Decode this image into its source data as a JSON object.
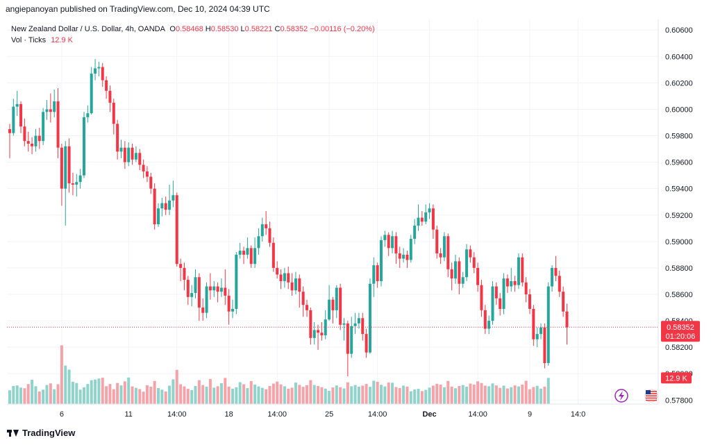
{
  "header": {
    "publish_caption": "angiepanoyan published on TradingView.com, Dec 10, 2024 04:39 UTC"
  },
  "legend": {
    "symbol": "New Zealand Dollar / U.S. Dollar, 4h, OANDA",
    "o_label": "O",
    "o_value": "0.58468",
    "h_label": "H",
    "h_value": "0.58530",
    "l_label": "L",
    "l_value": "0.58221",
    "c_label": "C",
    "c_value": "0.58352",
    "change": "−0.00116 (−0.20%)",
    "vol_label": "Vol · Ticks",
    "vol_value": "12.9 K"
  },
  "badges": {
    "price": "0.58352",
    "countdown": "01:20:06",
    "volume": "12.9 K"
  },
  "footer": {
    "brand": "TradingView"
  },
  "colors": {
    "up": "#26a69a",
    "down": "#f23645",
    "vol_up": "#8fd3cb",
    "vol_down": "#f5a3a8",
    "grid": "#f0f3fa",
    "axis_text": "#131722"
  },
  "icons": [
    "flash-icon",
    "us-flag-icon",
    "tradingview-logo-icon"
  ],
  "chart_data": {
    "type": "candlestick",
    "interval": "4h",
    "y_axis": {
      "side": "right",
      "ylim": [
        0.5777,
        0.6068
      ],
      "ticks": [
        "0.60600",
        "0.60400",
        "0.60200",
        "0.60000",
        "0.59800",
        "0.59600",
        "0.59400",
        "0.59200",
        "0.59000",
        "0.58800",
        "0.58600",
        "0.58400",
        "0.58200",
        "0.58000",
        "0.57800"
      ],
      "tick_values": [
        0.606,
        0.604,
        0.602,
        0.6,
        0.598,
        0.596,
        0.594,
        0.592,
        0.59,
        0.588,
        0.586,
        0.584,
        0.582,
        0.58,
        0.578
      ]
    },
    "x_axis": {
      "labels": [
        "6",
        "11",
        "14:00",
        "18",
        "14:00",
        "25",
        "14:00",
        "Dec",
        "14:00",
        "9",
        "14:0"
      ],
      "label_bar_index": [
        14,
        32,
        45,
        59,
        72,
        86,
        99,
        113,
        126,
        140,
        153
      ]
    },
    "last_price": 0.58352,
    "volume_ylim": [
      0,
      48000
    ],
    "candles": [
      [
        0.5985,
        0.5982,
        0.5989,
        0.5963,
        1
      ],
      [
        0.5982,
        0.6002,
        0.6008,
        0.598,
        1
      ],
      [
        0.6002,
        0.6004,
        0.6014,
        0.5995,
        1
      ],
      [
        0.6004,
        0.5987,
        0.6006,
        0.5982,
        0
      ],
      [
        0.5987,
        0.5976,
        0.5993,
        0.5972,
        0
      ],
      [
        0.5976,
        0.5974,
        0.5983,
        0.5968,
        0
      ],
      [
        0.5974,
        0.5972,
        0.5979,
        0.5966,
        0
      ],
      [
        0.5972,
        0.598,
        0.5985,
        0.5968,
        1
      ],
      [
        0.598,
        0.5976,
        0.5986,
        0.597,
        0
      ],
      [
        0.5976,
        0.5998,
        0.6001,
        0.5973,
        1
      ],
      [
        0.5998,
        0.6,
        0.6007,
        0.5992,
        1
      ],
      [
        0.6,
        0.5998,
        0.6012,
        0.599,
        0
      ],
      [
        0.5998,
        0.6006,
        0.6015,
        0.5994,
        1
      ],
      [
        0.6006,
        0.5971,
        0.6016,
        0.5963,
        0
      ],
      [
        0.5971,
        0.594,
        0.5974,
        0.5927,
        0
      ],
      [
        0.594,
        0.5972,
        0.5976,
        0.5912,
        1
      ],
      [
        0.5972,
        0.5944,
        0.5978,
        0.5937,
        0
      ],
      [
        0.5944,
        0.5943,
        0.5952,
        0.5935,
        0
      ],
      [
        0.5943,
        0.5945,
        0.5951,
        0.5934,
        1
      ],
      [
        0.5945,
        0.595,
        0.5955,
        0.594,
        1
      ],
      [
        0.595,
        0.5994,
        0.5998,
        0.5948,
        1
      ],
      [
        0.5994,
        0.5997,
        0.6003,
        0.599,
        1
      ],
      [
        0.5997,
        0.6027,
        0.6032,
        0.5996,
        1
      ],
      [
        0.6027,
        0.6031,
        0.6038,
        0.6022,
        1
      ],
      [
        0.6031,
        0.6032,
        0.6036,
        0.6025,
        1
      ],
      [
        0.6032,
        0.6022,
        0.6035,
        0.6017,
        0
      ],
      [
        0.6022,
        0.6014,
        0.6025,
        0.6008,
        0
      ],
      [
        0.6014,
        0.6005,
        0.6018,
        0.5998,
        0
      ],
      [
        0.6005,
        0.5989,
        0.6008,
        0.5981,
        0
      ],
      [
        0.5989,
        0.5968,
        0.5992,
        0.5962,
        0
      ],
      [
        0.5968,
        0.5971,
        0.5977,
        0.5963,
        1
      ],
      [
        0.5971,
        0.596,
        0.5976,
        0.5955,
        0
      ],
      [
        0.596,
        0.5971,
        0.5975,
        0.5957,
        1
      ],
      [
        0.5971,
        0.5962,
        0.5974,
        0.5958,
        0
      ],
      [
        0.5962,
        0.5967,
        0.5972,
        0.596,
        1
      ],
      [
        0.5967,
        0.5958,
        0.597,
        0.5954,
        0
      ],
      [
        0.5958,
        0.5953,
        0.5962,
        0.5948,
        0
      ],
      [
        0.5953,
        0.5949,
        0.5957,
        0.5945,
        0
      ],
      [
        0.5949,
        0.594,
        0.5952,
        0.5936,
        0
      ],
      [
        0.594,
        0.5913,
        0.5944,
        0.5909,
        0
      ],
      [
        0.5913,
        0.5925,
        0.5929,
        0.5911,
        1
      ],
      [
        0.5925,
        0.5929,
        0.5933,
        0.5919,
        1
      ],
      [
        0.5929,
        0.5924,
        0.5934,
        0.592,
        0
      ],
      [
        0.5924,
        0.5931,
        0.5943,
        0.592,
        1
      ],
      [
        0.5931,
        0.5935,
        0.5946,
        0.5926,
        1
      ],
      [
        0.5935,
        0.5883,
        0.5937,
        0.5881,
        0
      ],
      [
        0.5883,
        0.588,
        0.5887,
        0.587,
        0
      ],
      [
        0.588,
        0.5871,
        0.5884,
        0.5863,
        0
      ],
      [
        0.5871,
        0.5858,
        0.5874,
        0.5852,
        0
      ],
      [
        0.5858,
        0.5861,
        0.5867,
        0.5851,
        1
      ],
      [
        0.5861,
        0.5873,
        0.5879,
        0.5857,
        1
      ],
      [
        0.5873,
        0.585,
        0.5876,
        0.584,
        0
      ],
      [
        0.585,
        0.5846,
        0.5857,
        0.584,
        0
      ],
      [
        0.5846,
        0.5866,
        0.5869,
        0.5842,
        1
      ],
      [
        0.5866,
        0.5863,
        0.5876,
        0.5856,
        0
      ],
      [
        0.5863,
        0.5866,
        0.587,
        0.5858,
        1
      ],
      [
        0.5866,
        0.5862,
        0.5869,
        0.5854,
        0
      ],
      [
        0.5862,
        0.5865,
        0.5872,
        0.5858,
        1
      ],
      [
        0.5865,
        0.5859,
        0.5879,
        0.5852,
        0
      ],
      [
        0.5859,
        0.5847,
        0.5864,
        0.5837,
        0
      ],
      [
        0.5847,
        0.5849,
        0.5856,
        0.5842,
        1
      ],
      [
        0.5849,
        0.589,
        0.5892,
        0.5845,
        1
      ],
      [
        0.589,
        0.5893,
        0.5899,
        0.5887,
        1
      ],
      [
        0.5893,
        0.589,
        0.5896,
        0.5883,
        0
      ],
      [
        0.589,
        0.5895,
        0.5903,
        0.5887,
        1
      ],
      [
        0.5895,
        0.5883,
        0.5897,
        0.588,
        0
      ],
      [
        0.5883,
        0.5895,
        0.5903,
        0.588,
        1
      ],
      [
        0.5895,
        0.5904,
        0.591,
        0.589,
        1
      ],
      [
        0.5904,
        0.5913,
        0.5918,
        0.59,
        1
      ],
      [
        0.5913,
        0.591,
        0.5923,
        0.5905,
        0
      ],
      [
        0.591,
        0.5899,
        0.5915,
        0.5896,
        0
      ],
      [
        0.5899,
        0.588,
        0.5903,
        0.5877,
        0
      ],
      [
        0.588,
        0.5875,
        0.5885,
        0.5872,
        0
      ],
      [
        0.5875,
        0.587,
        0.5879,
        0.5864,
        0
      ],
      [
        0.587,
        0.5876,
        0.588,
        0.5865,
        1
      ],
      [
        0.5876,
        0.5869,
        0.5881,
        0.5864,
        0
      ],
      [
        0.5869,
        0.5863,
        0.5876,
        0.5859,
        0
      ],
      [
        0.5863,
        0.5872,
        0.5877,
        0.586,
        1
      ],
      [
        0.5872,
        0.5862,
        0.5875,
        0.585,
        0
      ],
      [
        0.5862,
        0.5852,
        0.5866,
        0.5843,
        0
      ],
      [
        0.5852,
        0.5848,
        0.5856,
        0.5843,
        0
      ],
      [
        0.5848,
        0.5827,
        0.585,
        0.5822,
        0
      ],
      [
        0.5827,
        0.5833,
        0.5839,
        0.5822,
        1
      ],
      [
        0.5833,
        0.5831,
        0.5837,
        0.5818,
        0
      ],
      [
        0.5831,
        0.5829,
        0.5839,
        0.5825,
        0
      ],
      [
        0.5829,
        0.5841,
        0.5848,
        0.5826,
        1
      ],
      [
        0.5841,
        0.5856,
        0.5867,
        0.584,
        1
      ],
      [
        0.5856,
        0.5848,
        0.5858,
        0.5838,
        0
      ],
      [
        0.5848,
        0.5865,
        0.5867,
        0.5842,
        1
      ],
      [
        0.5865,
        0.5837,
        0.5868,
        0.5833,
        0
      ],
      [
        0.5837,
        0.5838,
        0.5842,
        0.5825,
        1
      ],
      [
        0.5838,
        0.5815,
        0.584,
        0.5798,
        0
      ],
      [
        0.5815,
        0.5836,
        0.5843,
        0.5812,
        1
      ],
      [
        0.5836,
        0.5838,
        0.5846,
        0.583,
        1
      ],
      [
        0.5838,
        0.5842,
        0.5846,
        0.5834,
        1
      ],
      [
        0.5842,
        0.583,
        0.5846,
        0.5825,
        0
      ],
      [
        0.583,
        0.5816,
        0.5834,
        0.5812,
        0
      ],
      [
        0.5816,
        0.5868,
        0.5872,
        0.5815,
        1
      ],
      [
        0.5868,
        0.5882,
        0.5888,
        0.5858,
        1
      ],
      [
        0.5882,
        0.587,
        0.5884,
        0.5865,
        0
      ],
      [
        0.587,
        0.5901,
        0.5904,
        0.5866,
        1
      ],
      [
        0.5901,
        0.5905,
        0.5908,
        0.5896,
        1
      ],
      [
        0.5905,
        0.5895,
        0.5907,
        0.5889,
        0
      ],
      [
        0.5895,
        0.5904,
        0.5908,
        0.5891,
        1
      ],
      [
        0.5904,
        0.5891,
        0.5907,
        0.5883,
        0
      ],
      [
        0.5891,
        0.5887,
        0.5896,
        0.588,
        0
      ],
      [
        0.5887,
        0.589,
        0.5895,
        0.5884,
        1
      ],
      [
        0.589,
        0.5886,
        0.5893,
        0.588,
        0
      ],
      [
        0.5886,
        0.5902,
        0.5905,
        0.5884,
        1
      ],
      [
        0.5902,
        0.5912,
        0.5917,
        0.5898,
        1
      ],
      [
        0.5912,
        0.5918,
        0.5928,
        0.5908,
        1
      ],
      [
        0.5918,
        0.5915,
        0.5923,
        0.5912,
        0
      ],
      [
        0.5915,
        0.5922,
        0.5928,
        0.5913,
        1
      ],
      [
        0.5922,
        0.5925,
        0.5929,
        0.5917,
        1
      ],
      [
        0.5925,
        0.5909,
        0.5928,
        0.5902,
        0
      ],
      [
        0.5909,
        0.5891,
        0.5912,
        0.5887,
        0
      ],
      [
        0.5891,
        0.5888,
        0.5895,
        0.5883,
        0
      ],
      [
        0.5888,
        0.5904,
        0.5907,
        0.5885,
        1
      ],
      [
        0.5904,
        0.5879,
        0.5906,
        0.5873,
        0
      ],
      [
        0.5879,
        0.5872,
        0.5884,
        0.5863,
        0
      ],
      [
        0.5872,
        0.5885,
        0.589,
        0.5868,
        1
      ],
      [
        0.5885,
        0.5868,
        0.5888,
        0.586,
        0
      ],
      [
        0.5868,
        0.5873,
        0.5877,
        0.5865,
        1
      ],
      [
        0.5873,
        0.5894,
        0.5898,
        0.587,
        1
      ],
      [
        0.5894,
        0.5888,
        0.5897,
        0.5884,
        0
      ],
      [
        0.5888,
        0.588,
        0.5892,
        0.5876,
        0
      ],
      [
        0.588,
        0.5867,
        0.5884,
        0.5862,
        0
      ],
      [
        0.5867,
        0.5848,
        0.5871,
        0.5843,
        0
      ],
      [
        0.5848,
        0.5834,
        0.5852,
        0.583,
        0
      ],
      [
        0.5834,
        0.584,
        0.5844,
        0.583,
        1
      ],
      [
        0.584,
        0.5866,
        0.587,
        0.5837,
        1
      ],
      [
        0.5866,
        0.5857,
        0.5869,
        0.5852,
        0
      ],
      [
        0.5857,
        0.5849,
        0.5861,
        0.5844,
        0
      ],
      [
        0.5849,
        0.5872,
        0.5876,
        0.5845,
        1
      ],
      [
        0.5872,
        0.5866,
        0.5875,
        0.5861,
        0
      ],
      [
        0.5866,
        0.587,
        0.588,
        0.5862,
        1
      ],
      [
        0.587,
        0.5867,
        0.5874,
        0.5862,
        0
      ],
      [
        0.5867,
        0.5888,
        0.5891,
        0.5864,
        1
      ],
      [
        0.5888,
        0.5869,
        0.5891,
        0.5866,
        0
      ],
      [
        0.5869,
        0.586,
        0.5873,
        0.5854,
        0
      ],
      [
        0.586,
        0.5849,
        0.5864,
        0.5845,
        0
      ],
      [
        0.5849,
        0.5826,
        0.5852,
        0.5821,
        0
      ],
      [
        0.5826,
        0.583,
        0.5835,
        0.582,
        1
      ],
      [
        0.583,
        0.5835,
        0.5838,
        0.5826,
        1
      ],
      [
        0.5835,
        0.5808,
        0.5838,
        0.5804,
        0
      ],
      [
        0.5808,
        0.5866,
        0.5869,
        0.5806,
        1
      ],
      [
        0.5866,
        0.588,
        0.5882,
        0.5862,
        1
      ],
      [
        0.588,
        0.5874,
        0.5889,
        0.587,
        0
      ],
      [
        0.5874,
        0.5862,
        0.5878,
        0.5858,
        0
      ],
      [
        0.5862,
        0.5847,
        0.5866,
        0.5843,
        0
      ],
      [
        0.5847,
        0.5835,
        0.5853,
        0.5822,
        0
      ]
    ],
    "volumes": [
      6800,
      8900,
      9200,
      8100,
      7800,
      9900,
      12000,
      8800,
      6200,
      7100,
      9400,
      10200,
      7300,
      9800,
      29000,
      19000,
      17000,
      11000,
      10400,
      7100,
      8300,
      9900,
      11800,
      12100,
      12600,
      13000,
      8800,
      9900,
      7300,
      10400,
      9200,
      11200,
      13100,
      8700,
      8000,
      7400,
      6100,
      9300,
      8600,
      11400,
      7900,
      7100,
      6200,
      9100,
      12200,
      16900,
      9800,
      8700,
      7500,
      6900,
      8900,
      11800,
      9400,
      8600,
      12400,
      8100,
      8800,
      10300,
      12900,
      8600,
      7600,
      8300,
      10800,
      9800,
      7900,
      11300,
      9600,
      8700,
      8000,
      7300,
      8900,
      10100,
      11100,
      9700,
      8800,
      7600,
      8100,
      10600,
      9500,
      8500,
      9300,
      11800,
      9400,
      8900,
      8300,
      7600,
      6500,
      8200,
      9200,
      8300,
      7700,
      10700,
      8800,
      9400,
      8600,
      9100,
      9900,
      8500,
      11500,
      11000,
      9500,
      8700,
      10600,
      10500,
      8400,
      7900,
      9100,
      8600,
      6300,
      7200,
      7500,
      6400,
      7000,
      8100,
      9100,
      10000,
      9600,
      8300,
      11400,
      8600,
      7800,
      8900,
      9400,
      8600,
      10100,
      9600,
      11200,
      10400,
      9100,
      8800,
      10200,
      9200,
      8000,
      9100,
      7700,
      8300,
      9200,
      8700,
      9600,
      11500,
      7300,
      8400,
      9000,
      7600,
      8600,
      12900
    ],
    "volume_colors": [
      1,
      1,
      1,
      1,
      0,
      0,
      1,
      1,
      0,
      1,
      1,
      0,
      1,
      0,
      0,
      1,
      1,
      1,
      1,
      1,
      1,
      1,
      1,
      1,
      1,
      0,
      0,
      0,
      0,
      0,
      1,
      0,
      1,
      0,
      1,
      0,
      0,
      0,
      0,
      0,
      1,
      1,
      0,
      1,
      1,
      0,
      0,
      0,
      0,
      1,
      1,
      0,
      0,
      1,
      0,
      1,
      0,
      1,
      0,
      0,
      1,
      1,
      1,
      0,
      1,
      0,
      1,
      1,
      1,
      0,
      0,
      0,
      0,
      0,
      1,
      0,
      0,
      1,
      0,
      0,
      0,
      0,
      1,
      0,
      0,
      1,
      1,
      0,
      1,
      0,
      1,
      0,
      1,
      1,
      1,
      0,
      0,
      1,
      1,
      0,
      1,
      1,
      0,
      1,
      0,
      0,
      1,
      0,
      1,
      1,
      1,
      0,
      1,
      1,
      0,
      0,
      0,
      1,
      0,
      0,
      1,
      0,
      1,
      1,
      0,
      0,
      0,
      0,
      0,
      1,
      1,
      0,
      0,
      1,
      0,
      1,
      0,
      1,
      0,
      0,
      0,
      0,
      1,
      1,
      0,
      1,
      1,
      0,
      0,
      0,
      0,
      0
    ]
  }
}
